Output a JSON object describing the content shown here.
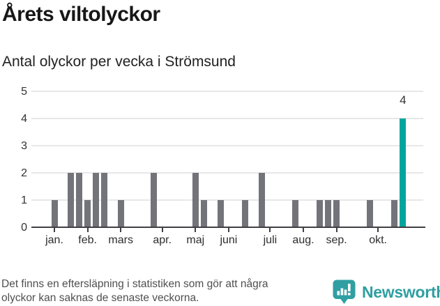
{
  "header": {
    "title": "Årets viltolyckor",
    "subtitle": "Antal olyckor per vecka i Strömsund"
  },
  "chart_data": {
    "type": "bar",
    "title": "Årets viltolyckor",
    "subtitle": "Antal olyckor per vecka i Strömsund",
    "ylabel": "Antal olyckor per vecka",
    "ylim": [
      0,
      5
    ],
    "yticks": [
      0,
      1,
      2,
      3,
      4,
      5
    ],
    "grid": true,
    "bar_color": "#73737a",
    "highlight_color": "#00a59d",
    "weekly_values": [
      1,
      0,
      2,
      2,
      1,
      2,
      2,
      0,
      1,
      0,
      0,
      0,
      2,
      0,
      0,
      0,
      0,
      2,
      1,
      0,
      1,
      0,
      0,
      1,
      0,
      2,
      0,
      0,
      0,
      1,
      0,
      0,
      1,
      1,
      1,
      0,
      0,
      0,
      1,
      0,
      0,
      1,
      4
    ],
    "highlight_index": 42,
    "annotation": {
      "label": "4",
      "week_index": 42
    },
    "month_ticks": [
      {
        "label": "jan.",
        "week_offset": 0
      },
      {
        "label": "feb.",
        "week_offset": 4
      },
      {
        "label": "mars",
        "week_offset": 8
      },
      {
        "label": "apr.",
        "week_offset": 13
      },
      {
        "label": "maj",
        "week_offset": 17
      },
      {
        "label": "juni",
        "week_offset": 21
      },
      {
        "label": "juli",
        "week_offset": 26
      },
      {
        "label": "aug.",
        "week_offset": 30
      },
      {
        "label": "sep.",
        "week_offset": 34
      },
      {
        "label": "okt.",
        "week_offset": 39
      }
    ]
  },
  "footer": {
    "note_lines": [
      "Det finns en eftersläpning i statistiken som gör att några",
      "olyckor kan saknas de senaste veckorna."
    ],
    "brand": "Newsworthy",
    "brand_color": "#2f9fa2"
  }
}
